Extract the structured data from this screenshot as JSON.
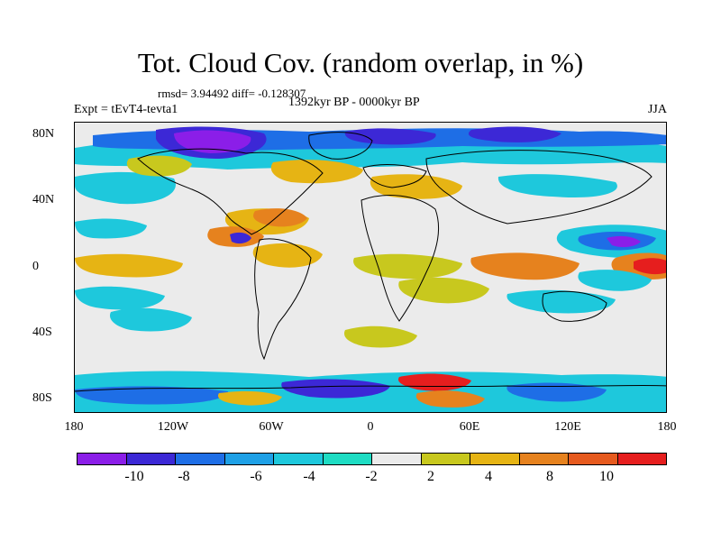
{
  "header": {
    "title": "Tot. Cloud Cov. (random overlap, in %)",
    "stats": "rmsd= 3.94492 diff= -0.128307",
    "period": "1392kyr BP - 0000kyr BP",
    "experiment": "Expt = tEvT4-tevta1",
    "season": "JJA"
  },
  "map": {
    "lat_ticks": [
      "80N",
      "40N",
      "0",
      "40S",
      "80S"
    ],
    "lon_ticks": [
      "180",
      "120W",
      "60W",
      "0",
      "60E",
      "120E",
      "180"
    ]
  },
  "colorbar": {
    "colors": [
      "#8b1ee8",
      "#3c28d6",
      "#1e6ee6",
      "#1ea0e6",
      "#1ec8dc",
      "#1edcc3",
      "#ebebeb",
      "#c8c81e",
      "#e6b414",
      "#e6821e",
      "#e65a1e",
      "#e61e1e"
    ],
    "labels": [
      "-10",
      "-8",
      "-6",
      "-4",
      "-2",
      "2",
      "4",
      "8",
      "10"
    ]
  }
}
